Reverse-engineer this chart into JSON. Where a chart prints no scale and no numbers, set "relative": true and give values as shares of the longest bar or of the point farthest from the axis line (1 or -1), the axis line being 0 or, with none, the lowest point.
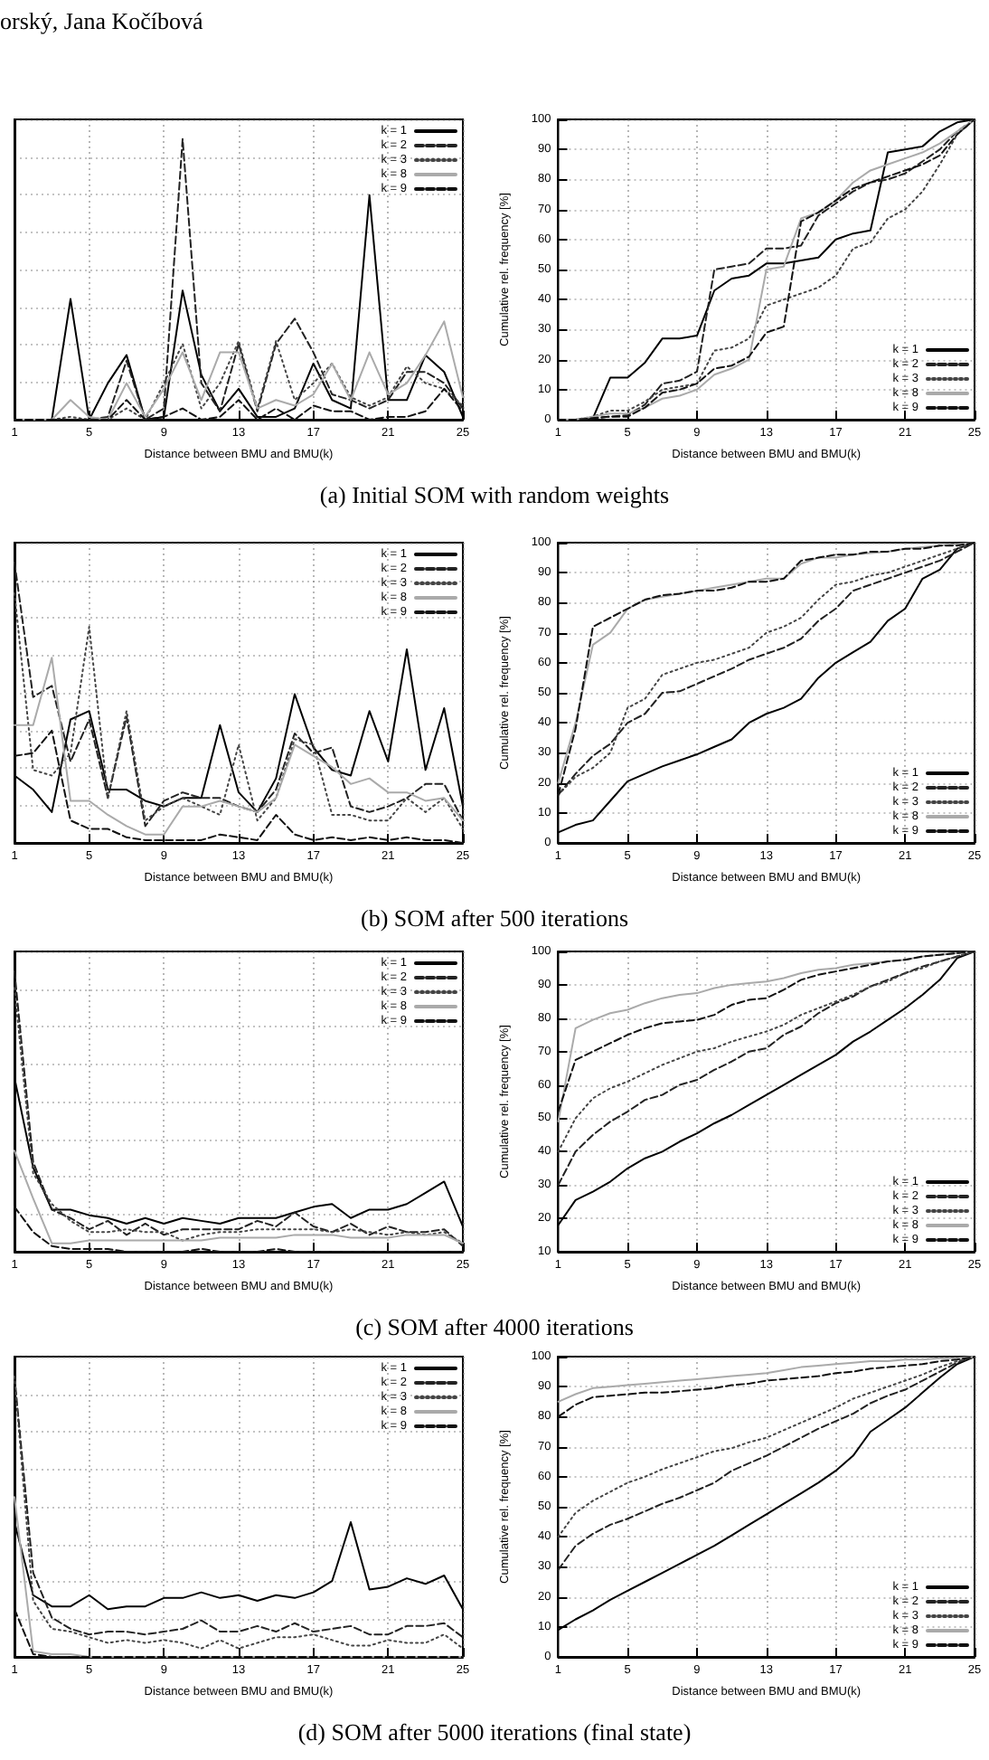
{
  "chart_data": [
    {
      "type": "line",
      "title": "(a) Initial SOM with random weights",
      "annotations": [
        "orský, Jana Kočíbová"
      ],
      "xlabel": "Distance between BMU and BMU(k)",
      "relative": true,
      "tick_labels": "x",
      "grid": true,
      "legend": "top right",
      "x": [
        1,
        2,
        3,
        4,
        5,
        6,
        7,
        8,
        9,
        10,
        11,
        12,
        13,
        14,
        15,
        16,
        17,
        18,
        19,
        20,
        21,
        22,
        23,
        24,
        25
      ],
      "xlim": [
        1,
        25
      ],
      "xticks": [
        1,
        5,
        9,
        13,
        17,
        21,
        25
      ],
      "series": [
        {
          "name": "k = 1",
          "color": "#000000",
          "line_style": "solid",
          "values": [
            0,
            0,
            0,
            0.43,
            0,
            0.13,
            0.23,
            0,
            0.01,
            0.46,
            0.16,
            0.03,
            0.11,
            0.01,
            0.01,
            0.04,
            0.2,
            0.07,
            0.04,
            0.8,
            0.07,
            0.07,
            0.23,
            0.17,
            0.01
          ]
        },
        {
          "name": "k = 2",
          "color": "#222222",
          "line_style": "dashed",
          "values": [
            0,
            0,
            0,
            0,
            0,
            0.01,
            0.21,
            0,
            0.04,
            1,
            0.13,
            0.03,
            0.27,
            0.03,
            0.27,
            0.36,
            0.24,
            0.09,
            0.07,
            0.04,
            0.07,
            0.17,
            0.17,
            0.13,
            0.04
          ]
        },
        {
          "name": "k = 3",
          "color": "#444444",
          "line_style": "dotted",
          "values": [
            0,
            0,
            0,
            0.01,
            0,
            0,
            0.04,
            0,
            0.13,
            0.27,
            0.04,
            0.13,
            0.28,
            0.04,
            0.28,
            0.07,
            0.13,
            0.2,
            0.08,
            0.05,
            0.08,
            0.19,
            0.13,
            0.11,
            0.05
          ]
        },
        {
          "name": "k = 8",
          "color": "#aaaaaa",
          "line_style": "solid",
          "values": [
            0,
            0,
            0,
            0.07,
            0.01,
            0,
            0.13,
            0.01,
            0.11,
            0.24,
            0.07,
            0.24,
            0.24,
            0.04,
            0.07,
            0.05,
            0.09,
            0.2,
            0.07,
            0.24,
            0.09,
            0.13,
            0.23,
            0.35,
            0.08
          ]
        },
        {
          "name": "k = 9",
          "color": "#111111",
          "line_style": "dashed",
          "values": [
            0,
            0,
            0,
            0,
            0,
            0,
            0.07,
            0,
            0.01,
            0.04,
            0,
            0.01,
            0.07,
            0,
            0.04,
            0,
            0.05,
            0.03,
            0.03,
            0,
            0.01,
            0.01,
            0.03,
            0.11,
            0.03
          ]
        }
      ]
    },
    {
      "type": "line",
      "xlabel": "Distance between BMU and BMU(k)",
      "ylabel": "Cumulative rel. frequency [%]",
      "grid": true,
      "legend": "bottom right",
      "x": [
        1,
        2,
        3,
        4,
        5,
        6,
        7,
        8,
        9,
        10,
        11,
        12,
        13,
        14,
        15,
        16,
        17,
        18,
        19,
        20,
        21,
        22,
        23,
        24,
        25
      ],
      "xlim": [
        1,
        25
      ],
      "xticks": [
        1,
        5,
        9,
        13,
        17,
        21,
        25
      ],
      "ylim": [
        0,
        100
      ],
      "yticks": [
        0,
        10,
        20,
        30,
        40,
        50,
        60,
        70,
        80,
        90,
        100
      ],
      "series": [
        {
          "name": "k = 1",
          "color": "#000000",
          "line_style": "solid",
          "values": [
            0,
            0,
            0.5,
            14,
            14,
            19,
            27,
            27,
            28,
            43,
            47,
            48,
            52,
            52,
            53,
            54,
            60,
            62,
            63,
            89,
            90,
            91,
            96,
            99,
            100
          ]
        },
        {
          "name": "k = 2",
          "color": "#222222",
          "line_style": "dashed",
          "values": [
            0,
            0,
            0.5,
            1,
            1.5,
            5,
            12,
            13,
            16,
            50,
            51,
            52,
            57,
            57,
            58,
            68,
            72,
            76,
            79,
            80,
            82,
            86,
            90,
            96,
            100
          ]
        },
        {
          "name": "k = 3",
          "color": "#444444",
          "line_style": "dotted",
          "values": [
            0,
            0,
            1,
            3,
            3,
            6,
            10,
            11,
            12,
            23,
            24,
            27,
            38,
            40,
            42,
            44,
            48,
            57,
            59,
            67,
            70,
            76,
            85,
            95,
            100
          ]
        },
        {
          "name": "k = 8",
          "color": "#aaaaaa",
          "line_style": "solid",
          "values": [
            0,
            0,
            1,
            2,
            2,
            4,
            7,
            8,
            10,
            15,
            17,
            20,
            50,
            51,
            67,
            69,
            73,
            79,
            83,
            85,
            87,
            89,
            92,
            96,
            100
          ]
        },
        {
          "name": "k = 9",
          "color": "#111111",
          "line_style": "dashed",
          "values": [
            0,
            0,
            0.5,
            1,
            1,
            4,
            9,
            10,
            12,
            17,
            18,
            21,
            29,
            31,
            66,
            69,
            73,
            77,
            79,
            81,
            83,
            85,
            88,
            95,
            100
          ]
        }
      ]
    },
    {
      "type": "line",
      "title": "(b) SOM after 500 iterations",
      "xlabel": "Distance between BMU and BMU(k)",
      "relative": true,
      "tick_labels": "x",
      "grid": true,
      "legend": "top right",
      "x": [
        1,
        2,
        3,
        4,
        5,
        6,
        7,
        8,
        9,
        10,
        11,
        12,
        13,
        14,
        15,
        16,
        17,
        18,
        19,
        20,
        21,
        22,
        23,
        24,
        25
      ],
      "xlim": [
        1,
        25
      ],
      "xticks": [
        1,
        5,
        9,
        13,
        17,
        21,
        25
      ],
      "series": [
        {
          "name": "k = 1",
          "color": "#000000",
          "line_style": "solid",
          "values": [
            0.24,
            0.19,
            0.11,
            0.44,
            0.47,
            0.19,
            0.19,
            0.15,
            0.13,
            0.16,
            0.16,
            0.42,
            0.18,
            0.11,
            0.23,
            0.53,
            0.34,
            0.26,
            0.24,
            0.47,
            0.29,
            0.69,
            0.26,
            0.48,
            0.13
          ]
        },
        {
          "name": "k = 2",
          "color": "#222222",
          "line_style": "dashed",
          "values": [
            1,
            0.52,
            0.56,
            0.29,
            0.44,
            0.16,
            0.45,
            0.06,
            0.15,
            0.18,
            0.16,
            0.16,
            0.13,
            0.11,
            0.19,
            0.39,
            0.32,
            0.34,
            0.13,
            0.11,
            0.13,
            0.16,
            0.21,
            0.21,
            0.08
          ]
        },
        {
          "name": "k = 3",
          "color": "#444444",
          "line_style": "dotted",
          "values": [
            0.89,
            0.26,
            0.24,
            0.32,
            0.77,
            0.16,
            0.47,
            0.08,
            0.13,
            0.16,
            0.13,
            0.1,
            0.35,
            0.08,
            0.16,
            0.37,
            0.35,
            0.1,
            0.1,
            0.08,
            0.08,
            0.16,
            0.11,
            0.16,
            0.05
          ]
        },
        {
          "name": "k = 8",
          "color": "#aaaaaa",
          "line_style": "solid",
          "values": [
            0.42,
            0.42,
            0.66,
            0.15,
            0.15,
            0.1,
            0.06,
            0.03,
            0.03,
            0.13,
            0.13,
            0.15,
            0.13,
            0.11,
            0.16,
            0.35,
            0.31,
            0.27,
            0.21,
            0.23,
            0.18,
            0.18,
            0.15,
            0.16,
            0.08
          ]
        },
        {
          "name": "k = 9",
          "color": "#111111",
          "line_style": "dashed",
          "values": [
            0.31,
            0.32,
            0.4,
            0.08,
            0.05,
            0.05,
            0.02,
            0.01,
            0.01,
            0.01,
            0.01,
            0.03,
            0.02,
            0.01,
            0.1,
            0.03,
            0.01,
            0.02,
            0.01,
            0.02,
            0.01,
            0.02,
            0.01,
            0.01,
            0
          ]
        }
      ]
    },
    {
      "type": "line",
      "xlabel": "Distance between BMU and BMU(k)",
      "ylabel": "Cumulative rel. frequency [%]",
      "grid": true,
      "legend": "bottom right",
      "x": [
        1,
        2,
        3,
        4,
        5,
        6,
        7,
        8,
        9,
        10,
        11,
        12,
        13,
        14,
        15,
        16,
        17,
        18,
        19,
        20,
        21,
        22,
        23,
        24,
        25
      ],
      "xlim": [
        1,
        25
      ],
      "xticks": [
        1,
        5,
        9,
        13,
        17,
        21,
        25
      ],
      "ylim": [
        0,
        100
      ],
      "yticks": [
        0,
        10,
        20,
        30,
        40,
        50,
        60,
        70,
        80,
        90,
        100
      ],
      "series": [
        {
          "name": "k = 1",
          "color": "#000000",
          "line_style": "solid",
          "values": [
            3.5,
            6,
            7.5,
            14,
            20.5,
            23,
            25.5,
            27.5,
            29.5,
            32,
            34.5,
            40,
            43,
            45,
            48,
            55,
            60,
            63.5,
            67,
            74,
            78,
            88,
            91,
            98,
            100
          ]
        },
        {
          "name": "k = 2",
          "color": "#222222",
          "line_style": "dashed",
          "values": [
            16,
            23,
            29,
            33,
            40,
            43,
            50,
            50.5,
            53,
            55.5,
            58,
            61,
            63,
            65,
            68,
            74,
            78,
            84,
            86,
            88,
            90,
            92,
            94,
            97,
            100
          ]
        },
        {
          "name": "k = 3",
          "color": "#444444",
          "line_style": "dotted",
          "values": [
            16,
            22,
            25,
            30,
            45,
            48,
            56,
            58,
            60,
            61,
            63,
            65,
            70,
            72,
            75,
            81,
            86,
            87,
            89,
            90,
            92,
            94,
            96,
            98,
            100
          ]
        },
        {
          "name": "k = 8",
          "color": "#aaaaaa",
          "line_style": "solid",
          "values": [
            20,
            40,
            66,
            70,
            78,
            81,
            82,
            83,
            84,
            85,
            86,
            87,
            88,
            88,
            93,
            95,
            95,
            96,
            96.5,
            97,
            98,
            98.5,
            99,
            99.5,
            100
          ]
        },
        {
          "name": "k = 9",
          "color": "#111111",
          "line_style": "dashed",
          "values": [
            16,
            38,
            72,
            75,
            78,
            81,
            82.5,
            83,
            84,
            84,
            85,
            87,
            87,
            88,
            94,
            95,
            96,
            96,
            97,
            97,
            98,
            98,
            99,
            99,
            100
          ]
        }
      ]
    },
    {
      "type": "line",
      "title": "(c) SOM after 4000 iterations",
      "xlabel": "Distance between BMU and BMU(k)",
      "relative": true,
      "tick_labels": "x",
      "grid": true,
      "legend": "top right",
      "x": [
        1,
        2,
        3,
        4,
        5,
        6,
        7,
        8,
        9,
        10,
        11,
        12,
        13,
        14,
        15,
        16,
        17,
        18,
        19,
        20,
        21,
        22,
        23,
        24,
        25
      ],
      "xlim": [
        1,
        25
      ],
      "xticks": [
        1,
        5,
        9,
        13,
        17,
        21,
        25
      ],
      "series": [
        {
          "name": "k = 1",
          "color": "#000000",
          "line_style": "solid",
          "values": [
            0.62,
            0.3,
            0.15,
            0.15,
            0.13,
            0.12,
            0.1,
            0.12,
            0.1,
            0.12,
            0.11,
            0.1,
            0.12,
            0.12,
            0.12,
            0.14,
            0.16,
            0.17,
            0.12,
            0.15,
            0.15,
            0.17,
            0.21,
            0.25,
            0.09
          ]
        },
        {
          "name": "k = 2",
          "color": "#222222",
          "line_style": "dashed",
          "values": [
            1,
            0.32,
            0.15,
            0.12,
            0.08,
            0.11,
            0.06,
            0.1,
            0.06,
            0.08,
            0.08,
            0.08,
            0.08,
            0.11,
            0.09,
            0.14,
            0.09,
            0.07,
            0.1,
            0.06,
            0.09,
            0.07,
            0.07,
            0.08,
            0.02
          ]
        },
        {
          "name": "k = 3",
          "color": "#444444",
          "line_style": "dotted",
          "values": [
            0.94,
            0.28,
            0.17,
            0.11,
            0.07,
            0.07,
            0.08,
            0.07,
            0.07,
            0.04,
            0.06,
            0.07,
            0.07,
            0.08,
            0.08,
            0.08,
            0.08,
            0.07,
            0.08,
            0.07,
            0.06,
            0.07,
            0.06,
            0.07,
            0.03
          ]
        },
        {
          "name": "k = 8",
          "color": "#aaaaaa",
          "line_style": "solid",
          "values": [
            0.36,
            0.19,
            0.03,
            0.03,
            0.04,
            0.04,
            0.04,
            0.04,
            0.04,
            0.04,
            0.04,
            0.05,
            0.05,
            0.05,
            0.05,
            0.06,
            0.06,
            0.06,
            0.05,
            0.05,
            0.05,
            0.06,
            0.06,
            0.06,
            0.03
          ]
        },
        {
          "name": "k = 9",
          "color": "#111111",
          "line_style": "dashed",
          "values": [
            0.16,
            0.07,
            0.02,
            0.01,
            0.01,
            0.01,
            0,
            0,
            0,
            0,
            0.01,
            0,
            0,
            0,
            0.01,
            0,
            0,
            0,
            0,
            0,
            0,
            0,
            0,
            0,
            0
          ]
        }
      ]
    },
    {
      "type": "line",
      "xlabel": "Distance between BMU and BMU(k)",
      "ylabel": "Cumulative rel. frequency [%]",
      "grid": true,
      "legend": "bottom right",
      "x": [
        1,
        2,
        3,
        4,
        5,
        6,
        7,
        8,
        9,
        10,
        11,
        12,
        13,
        14,
        15,
        16,
        17,
        18,
        19,
        20,
        21,
        22,
        23,
        24,
        25
      ],
      "xlim": [
        1,
        25
      ],
      "xticks": [
        1,
        5,
        9,
        13,
        17,
        21,
        25
      ],
      "ylim": [
        10,
        100
      ],
      "yticks": [
        10,
        20,
        30,
        40,
        50,
        60,
        70,
        80,
        90,
        100
      ],
      "series": [
        {
          "name": "k = 1",
          "color": "#000000",
          "line_style": "solid",
          "values": [
            18,
            25.5,
            28,
            31,
            35,
            38,
            40,
            43,
            45.5,
            48.5,
            51,
            54,
            57,
            60,
            63,
            66,
            69,
            73,
            76,
            79.5,
            83,
            87,
            91.5,
            98,
            100
          ]
        },
        {
          "name": "k = 2",
          "color": "#222222",
          "line_style": "dashed",
          "values": [
            30,
            40,
            45,
            49,
            52,
            55.5,
            57,
            60,
            61.5,
            64.5,
            67,
            70,
            71,
            75,
            77.5,
            81.5,
            84.5,
            86.5,
            89.5,
            91.5,
            93.5,
            95.5,
            97,
            98.5,
            100
          ]
        },
        {
          "name": "k = 3",
          "color": "#444444",
          "line_style": "dotted",
          "values": [
            40,
            50,
            56,
            59,
            61,
            63.5,
            66,
            68,
            70,
            71,
            73,
            74.5,
            76,
            78,
            81,
            83,
            85,
            87,
            89.5,
            91,
            93.5,
            95,
            97,
            98.5,
            100
          ]
        },
        {
          "name": "k = 8",
          "color": "#aaaaaa",
          "line_style": "solid",
          "values": [
            49,
            77,
            79.5,
            81.5,
            82.5,
            84.5,
            86,
            87,
            87.5,
            89,
            90,
            90.5,
            91,
            92,
            93.5,
            94.5,
            95,
            96,
            96.5,
            97,
            97.5,
            98.5,
            99,
            99.5,
            100
          ]
        },
        {
          "name": "k = 9",
          "color": "#111111",
          "line_style": "dashed",
          "values": [
            52,
            67.5,
            70,
            72.5,
            75,
            77,
            78.5,
            79,
            79.5,
            81,
            84,
            85.5,
            86,
            88.5,
            91.5,
            93,
            94,
            95,
            96,
            97,
            97.5,
            98.5,
            99,
            99.5,
            100
          ]
        }
      ]
    },
    {
      "type": "line",
      "title": "(d) SOM after 5000 iterations (final state)",
      "xlabel": "Distance between BMU and BMU(k)",
      "relative": true,
      "tick_labels": "x",
      "grid": true,
      "legend": "top right",
      "x": [
        1,
        2,
        3,
        4,
        5,
        6,
        7,
        8,
        9,
        10,
        11,
        12,
        13,
        14,
        15,
        16,
        17,
        18,
        19,
        20,
        21,
        22,
        23,
        24,
        25
      ],
      "xlim": [
        1,
        25
      ],
      "xticks": [
        1,
        5,
        9,
        13,
        17,
        21,
        25
      ],
      "series": [
        {
          "name": "k = 1",
          "color": "#000000",
          "line_style": "solid",
          "values": [
            0.48,
            0.22,
            0.18,
            0.18,
            0.22,
            0.17,
            0.18,
            0.18,
            0.21,
            0.21,
            0.23,
            0.21,
            0.22,
            0.2,
            0.22,
            0.21,
            0.23,
            0.27,
            0.48,
            0.24,
            0.25,
            0.28,
            0.26,
            0.29,
            0.17
          ]
        },
        {
          "name": "k = 2",
          "color": "#222222",
          "line_style": "dashed",
          "values": [
            1,
            0.3,
            0.14,
            0.1,
            0.08,
            0.09,
            0.09,
            0.08,
            0.09,
            0.1,
            0.13,
            0.09,
            0.09,
            0.11,
            0.09,
            0.12,
            0.09,
            0.1,
            0.11,
            0.08,
            0.08,
            0.11,
            0.11,
            0.12,
            0.07
          ]
        },
        {
          "name": "k = 3",
          "color": "#444444",
          "line_style": "dotted",
          "values": [
            1,
            0.2,
            0.1,
            0.09,
            0.07,
            0.05,
            0.06,
            0.05,
            0.06,
            0.05,
            0.03,
            0.06,
            0.03,
            0.05,
            0.07,
            0.07,
            0.08,
            0.06,
            0.04,
            0.04,
            0.06,
            0.05,
            0.05,
            0.08,
            0.03
          ]
        },
        {
          "name": "k = 8",
          "color": "#aaaaaa",
          "line_style": "solid",
          "values": [
            0.57,
            0.02,
            0.01,
            0.01,
            0,
            0,
            0,
            0,
            0,
            0,
            0,
            0,
            0,
            0,
            0,
            0,
            0,
            0,
            0,
            0,
            0,
            0,
            0,
            0,
            0
          ]
        },
        {
          "name": "k = 9",
          "color": "#111111",
          "line_style": "dashed",
          "values": [
            0.17,
            0.01,
            0,
            0,
            0,
            0,
            0,
            0,
            0,
            0,
            0,
            0,
            0,
            0,
            0,
            0,
            0,
            0,
            0,
            0,
            0,
            0,
            0,
            0,
            0
          ]
        }
      ]
    },
    {
      "type": "line",
      "xlabel": "Distance between BMU and BMU(k)",
      "ylabel": "Cumulative rel. frequency [%]",
      "grid": true,
      "legend": "bottom right",
      "x": [
        1,
        2,
        3,
        4,
        5,
        6,
        7,
        8,
        9,
        10,
        11,
        12,
        13,
        14,
        15,
        16,
        17,
        18,
        19,
        20,
        21,
        22,
        23,
        24,
        25
      ],
      "xlim": [
        1,
        25
      ],
      "xticks": [
        1,
        5,
        9,
        13,
        17,
        21,
        25
      ],
      "ylim": [
        0,
        100
      ],
      "yticks": [
        0,
        10,
        20,
        30,
        40,
        50,
        60,
        70,
        80,
        90,
        100
      ],
      "series": [
        {
          "name": "k = 1",
          "color": "#000000",
          "line_style": "solid",
          "values": [
            9,
            12.5,
            15.5,
            19,
            22,
            25,
            28,
            31,
            34,
            37,
            40.5,
            44,
            47.5,
            51,
            54.5,
            58,
            62,
            67,
            75,
            79,
            83,
            88,
            93,
            97.5,
            100
          ]
        },
        {
          "name": "k = 2",
          "color": "#222222",
          "line_style": "dashed",
          "values": [
            29,
            37,
            41,
            44,
            46,
            48.5,
            51,
            53,
            55.5,
            58,
            62,
            64.5,
            67,
            70,
            73,
            76,
            78.5,
            81,
            84.5,
            87,
            89,
            92,
            95,
            98,
            100
          ]
        },
        {
          "name": "k = 3",
          "color": "#444444",
          "line_style": "dotted",
          "values": [
            40,
            48,
            52,
            55,
            58,
            60,
            62.5,
            64.5,
            66.5,
            68.5,
            69.5,
            71.5,
            73,
            75.5,
            78,
            80.5,
            83,
            86,
            88,
            90,
            92,
            94,
            96.5,
            98.5,
            100
          ]
        },
        {
          "name": "k = 8",
          "color": "#aaaaaa",
          "line_style": "solid",
          "values": [
            85,
            87.5,
            89.5,
            90,
            90.5,
            91,
            91.5,
            92,
            92.5,
            93,
            93.5,
            94,
            94.5,
            95.5,
            96.5,
            97,
            97.5,
            98,
            98.5,
            98.5,
            99,
            99,
            99.5,
            99.5,
            100
          ]
        },
        {
          "name": "k = 9",
          "color": "#111111",
          "line_style": "dashed",
          "values": [
            80,
            84,
            86.5,
            87,
            87.5,
            88,
            88,
            88.5,
            89,
            89.5,
            90.5,
            91,
            92,
            92.5,
            93,
            93.5,
            94.5,
            95,
            96,
            96.5,
            97,
            97.5,
            98.5,
            99,
            100
          ]
        }
      ]
    }
  ]
}
